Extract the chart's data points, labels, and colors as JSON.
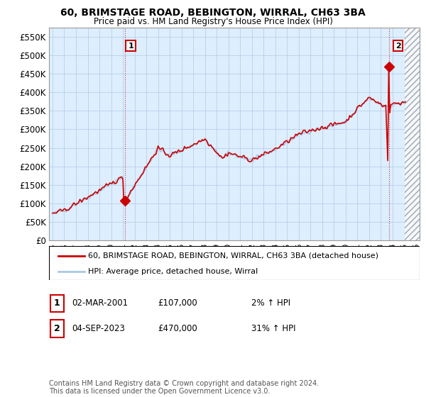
{
  "title": "60, BRIMSTAGE ROAD, BEBINGTON, WIRRAL, CH63 3BA",
  "subtitle": "Price paid vs. HM Land Registry's House Price Index (HPI)",
  "ylim": [
    0,
    575000
  ],
  "yticks": [
    0,
    50000,
    100000,
    150000,
    200000,
    250000,
    300000,
    350000,
    400000,
    450000,
    500000,
    550000
  ],
  "ytick_labels": [
    "£0",
    "£50K",
    "£100K",
    "£150K",
    "£200K",
    "£250K",
    "£300K",
    "£350K",
    "£400K",
    "£450K",
    "£500K",
    "£550K"
  ],
  "sale1_date_num": 2001.17,
  "sale1_price": 107000,
  "sale1_label": "1",
  "sale2_date_num": 2023.67,
  "sale2_price": 470000,
  "sale2_label": "2",
  "legend_line1": "60, BRIMSTAGE ROAD, BEBINGTON, WIRRAL, CH63 3BA (detached house)",
  "legend_line2": "HPI: Average price, detached house, Wirral",
  "annotation1_date": "02-MAR-2001",
  "annotation1_price": "£107,000",
  "annotation1_hpi": "2% ↑ HPI",
  "annotation2_date": "04-SEP-2023",
  "annotation2_price": "£470,000",
  "annotation2_hpi": "31% ↑ HPI",
  "footer": "Contains HM Land Registry data © Crown copyright and database right 2024.\nThis data is licensed under the Open Government Licence v3.0.",
  "hpi_color": "#a8c8e8",
  "sale_color": "#cc0000",
  "bg_color": "#ddeeff",
  "grid_color": "#b8cfe8",
  "marker_color": "#cc0000",
  "xlim_start": 1994.7,
  "xlim_end": 2026.3,
  "hatch_start": 2025.0
}
